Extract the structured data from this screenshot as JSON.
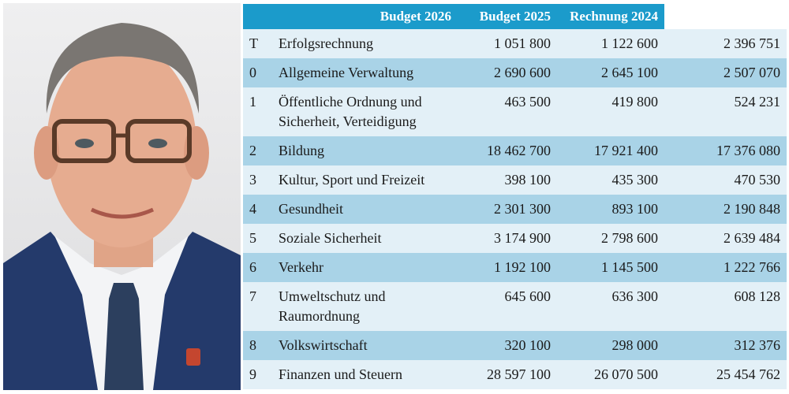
{
  "table": {
    "columns": [
      "Budget 2026",
      "Budget 2025",
      "Rechnung 2024"
    ],
    "rows": [
      [
        "T",
        "Erfolgsrechnung",
        "1 051 800",
        "1 122 600",
        "2 396 751"
      ],
      [
        "0",
        "Allgemeine Verwaltung",
        "2 690 600",
        "2 645 100",
        "2 507 070"
      ],
      [
        "1",
        [
          "Öffentliche Ordnung und",
          "Sicherheit, Verteidigung"
        ],
        "463 500",
        "419 800",
        "524 231"
      ],
      [
        "2",
        "Bildung",
        "18 462 700",
        "17 921 400",
        "17 376 080"
      ],
      [
        "3",
        "Kultur, Sport und Freizeit",
        "398 100",
        "435 300",
        "470 530"
      ],
      [
        "4",
        "Gesundheit",
        "2 301 300",
        "893 100",
        "2 190 848"
      ],
      [
        "5",
        "Soziale Sicherheit",
        "3 174 900",
        "2 798 600",
        "2 639 484"
      ],
      [
        "6",
        "Verkehr",
        "1 192 100",
        "1 145 500",
        "1 222 766"
      ],
      [
        "7",
        [
          "Umweltschutz und",
          "Raumordnung"
        ],
        "645 600",
        "636 300",
        "608 128"
      ],
      [
        "8",
        "Volkswirtschaft",
        "320 100",
        "298 000",
        "312 376"
      ],
      [
        "9",
        "Finanzen und Steuern",
        "28 597 100",
        "26 070 500",
        "25 454 762"
      ]
    ]
  }
}
